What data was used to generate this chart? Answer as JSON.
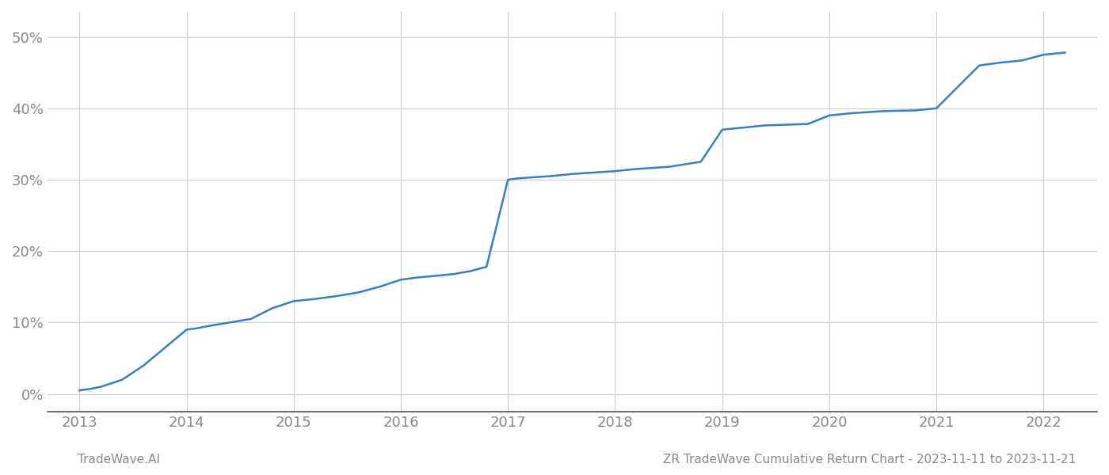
{
  "x_values": [
    2013.0,
    2013.1,
    2013.2,
    2013.4,
    2013.6,
    2013.8,
    2014.0,
    2014.1,
    2014.2,
    2014.4,
    2014.6,
    2014.8,
    2015.0,
    2015.2,
    2015.4,
    2015.6,
    2015.8,
    2016.0,
    2016.15,
    2016.3,
    2016.5,
    2016.65,
    2016.8,
    2017.0,
    2017.1,
    2017.2,
    2017.4,
    2017.6,
    2017.8,
    2018.0,
    2018.2,
    2018.5,
    2018.8,
    2019.0,
    2019.2,
    2019.4,
    2019.6,
    2019.8,
    2020.0,
    2020.2,
    2020.5,
    2020.8,
    2021.0,
    2021.1,
    2021.2,
    2021.4,
    2021.6,
    2021.8,
    2022.0,
    2022.2
  ],
  "y_values": [
    0.005,
    0.007,
    0.01,
    0.02,
    0.04,
    0.065,
    0.09,
    0.092,
    0.095,
    0.1,
    0.105,
    0.12,
    0.13,
    0.133,
    0.137,
    0.142,
    0.15,
    0.16,
    0.163,
    0.165,
    0.168,
    0.172,
    0.178,
    0.3,
    0.302,
    0.303,
    0.305,
    0.308,
    0.31,
    0.312,
    0.315,
    0.318,
    0.325,
    0.37,
    0.373,
    0.376,
    0.377,
    0.378,
    0.39,
    0.393,
    0.396,
    0.397,
    0.4,
    0.415,
    0.43,
    0.46,
    0.464,
    0.467,
    0.475,
    0.478
  ],
  "line_color": "#3a7ebf",
  "line_width": 1.8,
  "background_color": "#ffffff",
  "grid_color": "#cccccc",
  "yticks": [
    0.0,
    0.1,
    0.2,
    0.3,
    0.4,
    0.5
  ],
  "ytick_labels": [
    "0%",
    "10%",
    "20%",
    "30%",
    "40%",
    "50%"
  ],
  "xticks": [
    2013,
    2014,
    2015,
    2016,
    2017,
    2018,
    2019,
    2020,
    2021,
    2022
  ],
  "xtick_labels": [
    "2013",
    "2014",
    "2015",
    "2016",
    "2017",
    "2018",
    "2019",
    "2020",
    "2021",
    "2022"
  ],
  "xlim": [
    2012.7,
    2022.5
  ],
  "ylim": [
    -0.025,
    0.535
  ],
  "footer_left": "TradeWave.AI",
  "footer_right": "ZR TradeWave Cumulative Return Chart - 2023-11-11 to 2023-11-21",
  "label_color": "#888888",
  "footer_color": "#888888",
  "footer_fontsize": 11,
  "tick_fontsize": 13
}
